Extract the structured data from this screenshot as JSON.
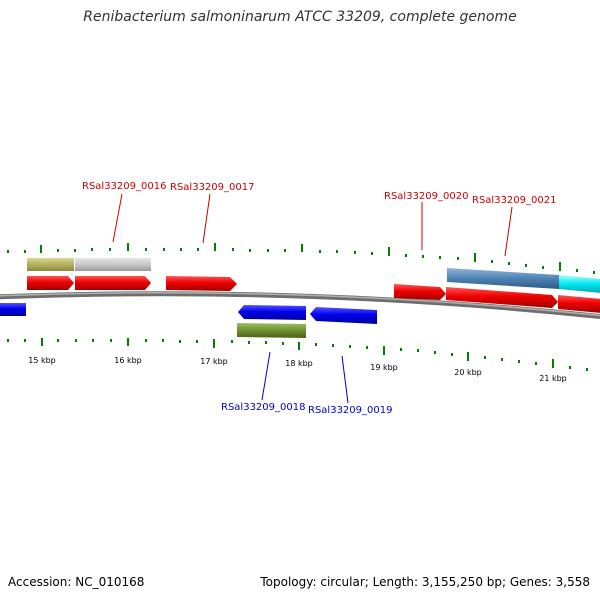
{
  "title": "Renibacterium salmoninarum ATCC 33209, complete genome",
  "footer": {
    "accession": "Accession: NC_010168",
    "info": "Topology: circular; Length: 3,155,250 bp; Genes: 3,558"
  },
  "axis_labels": [
    "15 kbp",
    "16 kbp",
    "17 kbp",
    "18 kbp",
    "19 kbp",
    "20 kbp",
    "21 kbp"
  ],
  "gene_labels": {
    "g0016": "RSal33209_0016",
    "g0017": "RSal33209_0017",
    "g0018": "RSal33209_0018",
    "g0019": "RSal33209_0019",
    "g0020": "RSal33209_0020",
    "g0021": "RSal33209_0021"
  },
  "colors": {
    "forward_gene": "#ff0000",
    "reverse_gene": "#0000ee",
    "backbone": "#808080",
    "tick": "#008000",
    "forward_label": "#cc0000",
    "reverse_label": "#0000cc"
  }
}
